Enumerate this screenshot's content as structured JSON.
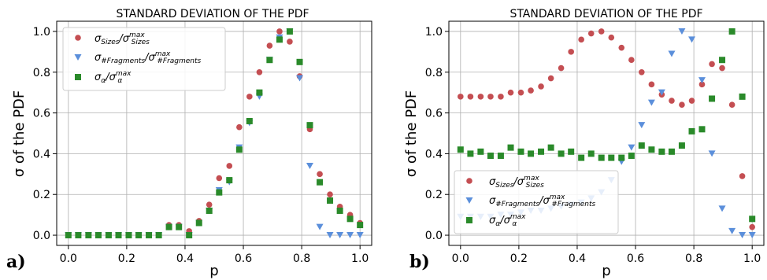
{
  "chart_data": [
    {
      "type": "scatter",
      "panel_label": "a)",
      "title": "STANDARD DEVIATION OF THE PDF",
      "xlabel": "p",
      "ylabel": "σ of the PDF",
      "xlim": [
        -0.04,
        1.04
      ],
      "ylim": [
        -0.05,
        1.05
      ],
      "xticks": [
        "0.0",
        "0.2",
        "0.4",
        "0.6",
        "0.8",
        "1.0"
      ],
      "yticks": [
        "0.0",
        "0.2",
        "0.4",
        "0.6",
        "0.8",
        "1.0"
      ],
      "grid": true,
      "legend_position": "upper left",
      "series": [
        {
          "name": "σSizes/σmaxSizes",
          "color": "#c44e52",
          "marker": "circle",
          "x": [
            0.0,
            0.034,
            0.069,
            0.103,
            0.138,
            0.172,
            0.207,
            0.241,
            0.276,
            0.31,
            0.345,
            0.379,
            0.414,
            0.448,
            0.483,
            0.517,
            0.552,
            0.586,
            0.621,
            0.655,
            0.69,
            0.724,
            0.759,
            0.793,
            0.828,
            0.862,
            0.897,
            0.931,
            0.966,
            1.0
          ],
          "y": [
            0,
            0,
            0,
            0,
            0,
            0,
            0,
            0,
            0,
            0,
            0.05,
            0.05,
            0.02,
            0.07,
            0.15,
            0.28,
            0.34,
            0.53,
            0.68,
            0.8,
            0.93,
            1.0,
            0.95,
            0.78,
            0.52,
            0.3,
            0.2,
            0.14,
            0.1,
            0.06
          ]
        },
        {
          "name": "σ#Fragments/σmax#Fragments",
          "color": "#5b8fdb",
          "marker": "triangle-down",
          "x": [
            0.0,
            0.034,
            0.069,
            0.103,
            0.138,
            0.172,
            0.207,
            0.241,
            0.276,
            0.31,
            0.345,
            0.379,
            0.414,
            0.448,
            0.483,
            0.517,
            0.552,
            0.586,
            0.621,
            0.655,
            0.69,
            0.724,
            0.759,
            0.793,
            0.828,
            0.862,
            0.897,
            0.931,
            0.966,
            1.0
          ],
          "y": [
            0,
            0,
            0,
            0,
            0,
            0,
            0,
            0,
            0,
            0,
            0.04,
            0.04,
            0.0,
            0.06,
            0.12,
            0.22,
            0.26,
            0.43,
            0.55,
            0.68,
            0.86,
            0.97,
            1.0,
            0.77,
            0.34,
            0.04,
            0.0,
            0.0,
            0.0,
            0.0
          ]
        },
        {
          "name": "σα/σmaxα",
          "color": "#2a8a2a",
          "marker": "square",
          "x": [
            0.0,
            0.034,
            0.069,
            0.103,
            0.138,
            0.172,
            0.207,
            0.241,
            0.276,
            0.31,
            0.345,
            0.379,
            0.414,
            0.448,
            0.483,
            0.517,
            0.552,
            0.586,
            0.621,
            0.655,
            0.69,
            0.724,
            0.759,
            0.793,
            0.828,
            0.862,
            0.897,
            0.931,
            0.966,
            1.0
          ],
          "y": [
            0,
            0,
            0,
            0,
            0,
            0,
            0,
            0,
            0,
            0,
            0.04,
            0.04,
            0.0,
            0.06,
            0.12,
            0.21,
            0.27,
            0.42,
            0.56,
            0.7,
            0.86,
            0.96,
            1.0,
            0.85,
            0.54,
            0.26,
            0.17,
            0.12,
            0.08,
            0.05
          ]
        }
      ]
    },
    {
      "type": "scatter",
      "panel_label": "b)",
      "title": "STANDARD DEVIATION OF THE PDF",
      "xlabel": "p",
      "ylabel": "σ of the PDF",
      "xlim": [
        -0.04,
        1.04
      ],
      "ylim": [
        -0.05,
        1.05
      ],
      "xticks": [
        "0.0",
        "0.2",
        "0.4",
        "0.6",
        "0.8",
        "1.0"
      ],
      "yticks": [
        "0.0",
        "0.2",
        "0.4",
        "0.6",
        "0.8",
        "1.0"
      ],
      "grid": true,
      "legend_position": "lower left",
      "series": [
        {
          "name": "σSizes/σmaxSizes",
          "color": "#c44e52",
          "marker": "circle",
          "x": [
            0.0,
            0.034,
            0.069,
            0.103,
            0.138,
            0.172,
            0.207,
            0.241,
            0.276,
            0.31,
            0.345,
            0.379,
            0.414,
            0.448,
            0.483,
            0.517,
            0.552,
            0.586,
            0.621,
            0.655,
            0.69,
            0.724,
            0.759,
            0.793,
            0.828,
            0.862,
            0.897,
            0.931,
            0.966,
            1.0
          ],
          "y": [
            0.68,
            0.68,
            0.68,
            0.68,
            0.68,
            0.7,
            0.7,
            0.71,
            0.73,
            0.77,
            0.82,
            0.9,
            0.96,
            0.99,
            1.0,
            0.97,
            0.92,
            0.86,
            0.8,
            0.74,
            0.69,
            0.66,
            0.64,
            0.66,
            0.74,
            0.84,
            0.82,
            0.64,
            0.29,
            0.04
          ]
        },
        {
          "name": "σ#Fragments/σmax#Fragments",
          "color": "#5b8fdb",
          "marker": "triangle-down",
          "x": [
            0.0,
            0.034,
            0.069,
            0.103,
            0.138,
            0.172,
            0.207,
            0.241,
            0.276,
            0.31,
            0.345,
            0.379,
            0.414,
            0.448,
            0.483,
            0.517,
            0.552,
            0.586,
            0.621,
            0.655,
            0.69,
            0.724,
            0.759,
            0.793,
            0.828,
            0.862,
            0.897,
            0.931,
            0.966,
            1.0
          ],
          "y": [
            0.09,
            0.09,
            0.09,
            0.09,
            0.1,
            0.1,
            0.11,
            0.12,
            0.12,
            0.13,
            0.14,
            0.15,
            0.16,
            0.18,
            0.21,
            0.27,
            0.36,
            0.43,
            0.54,
            0.65,
            0.7,
            0.89,
            1.0,
            0.96,
            0.76,
            0.4,
            0.13,
            0.02,
            0.0,
            0.0
          ]
        },
        {
          "name": "σα/σmaxα",
          "color": "#2a8a2a",
          "marker": "square",
          "x": [
            0.0,
            0.034,
            0.069,
            0.103,
            0.138,
            0.172,
            0.207,
            0.241,
            0.276,
            0.31,
            0.345,
            0.379,
            0.414,
            0.448,
            0.483,
            0.517,
            0.552,
            0.586,
            0.621,
            0.655,
            0.69,
            0.724,
            0.759,
            0.793,
            0.828,
            0.862,
            0.897,
            0.931,
            0.966,
            1.0
          ],
          "y": [
            0.42,
            0.4,
            0.41,
            0.39,
            0.39,
            0.43,
            0.41,
            0.4,
            0.41,
            0.43,
            0.4,
            0.41,
            0.38,
            0.4,
            0.38,
            0.38,
            0.38,
            0.39,
            0.44,
            0.42,
            0.41,
            0.41,
            0.44,
            0.51,
            0.52,
            0.67,
            0.86,
            1.0,
            0.68,
            0.08
          ]
        }
      ]
    }
  ]
}
